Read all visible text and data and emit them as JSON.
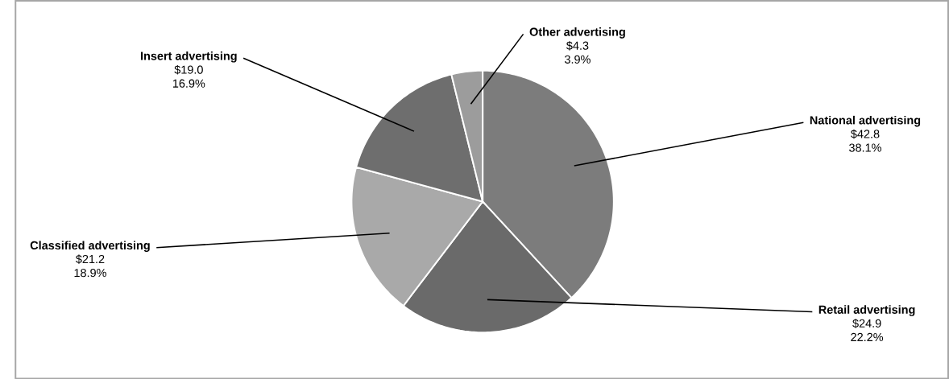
{
  "chart_data": {
    "type": "pie",
    "categories": [
      "National advertising",
      "Retail advertising",
      "Classified advertising",
      "Insert advertising",
      "Other advertising"
    ],
    "values": [
      42.8,
      24.9,
      21.2,
      19.0,
      4.3
    ],
    "colors": [
      "#7c7c7c",
      "#6a6a6a",
      "#a9a9a9",
      "#6e6e6e",
      "#9c9c9c"
    ],
    "value_labels": [
      "$42.8",
      "$24.9",
      "$21.2",
      "$19.0",
      "$4.3"
    ],
    "annotations": [
      "38.1%",
      "22.2%",
      "18.9%",
      "16.9%",
      "3.9%"
    ]
  }
}
